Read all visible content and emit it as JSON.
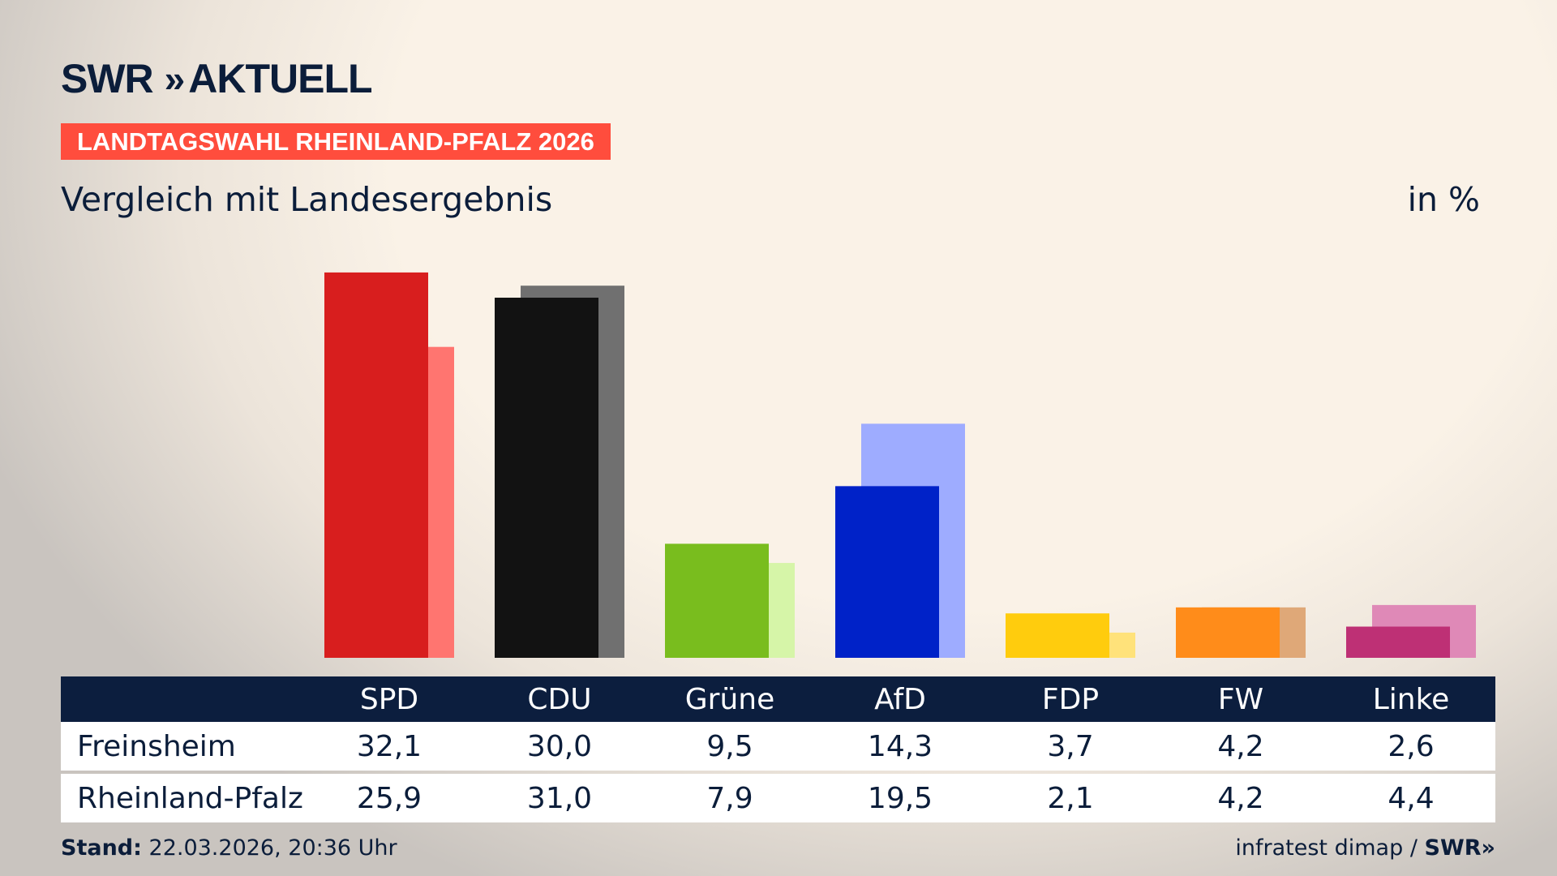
{
  "logo": {
    "brand": "SWR",
    "name": "AKTUELL"
  },
  "badge": "LANDTAGSWAHL RHEINLAND-PFALZ 2026",
  "subtitle": "Vergleich mit Landesergebnis",
  "unit": "in %",
  "chart_data": {
    "type": "bar",
    "categories": [
      "SPD",
      "CDU",
      "Grüne",
      "AfD",
      "FDP",
      "FW",
      "Linke"
    ],
    "series": [
      {
        "name": "Freinsheim",
        "values": [
          32.1,
          30.0,
          9.5,
          14.3,
          3.7,
          4.2,
          2.6
        ]
      },
      {
        "name": "Rheinland-Pfalz",
        "values": [
          25.9,
          31.0,
          7.9,
          19.5,
          2.1,
          4.2,
          4.4
        ]
      }
    ],
    "colors": {
      "primary": [
        "#d81e1e",
        "#121212",
        "#79bd1e",
        "#0022c8",
        "#ffcc0d",
        "#ff8c1a",
        "#be3075"
      ],
      "secondary": [
        "#ff7570",
        "#707070",
        "#d6f5a8",
        "#9eacff",
        "#ffe27a",
        "#dfa878",
        "#df89b7"
      ]
    },
    "ylim": [
      0,
      33
    ]
  },
  "table": {
    "headers": [
      "SPD",
      "CDU",
      "Grüne",
      "AfD",
      "FDP",
      "FW",
      "Linke"
    ],
    "rows": [
      {
        "label": "Freinsheim",
        "values": [
          "32,1",
          "30,0",
          "9,5",
          "14,3",
          "3,7",
          "4,2",
          "2,6"
        ]
      },
      {
        "label": "Rheinland-Pfalz",
        "values": [
          "25,9",
          "31,0",
          "7,9",
          "19,5",
          "2,1",
          "4,2",
          "4,4"
        ]
      }
    ]
  },
  "footer": {
    "stand_label": "Stand:",
    "stand_value": "22.03.2026, 20:36 Uhr",
    "source": "infratest dimap /",
    "source_brand": "SWR"
  }
}
